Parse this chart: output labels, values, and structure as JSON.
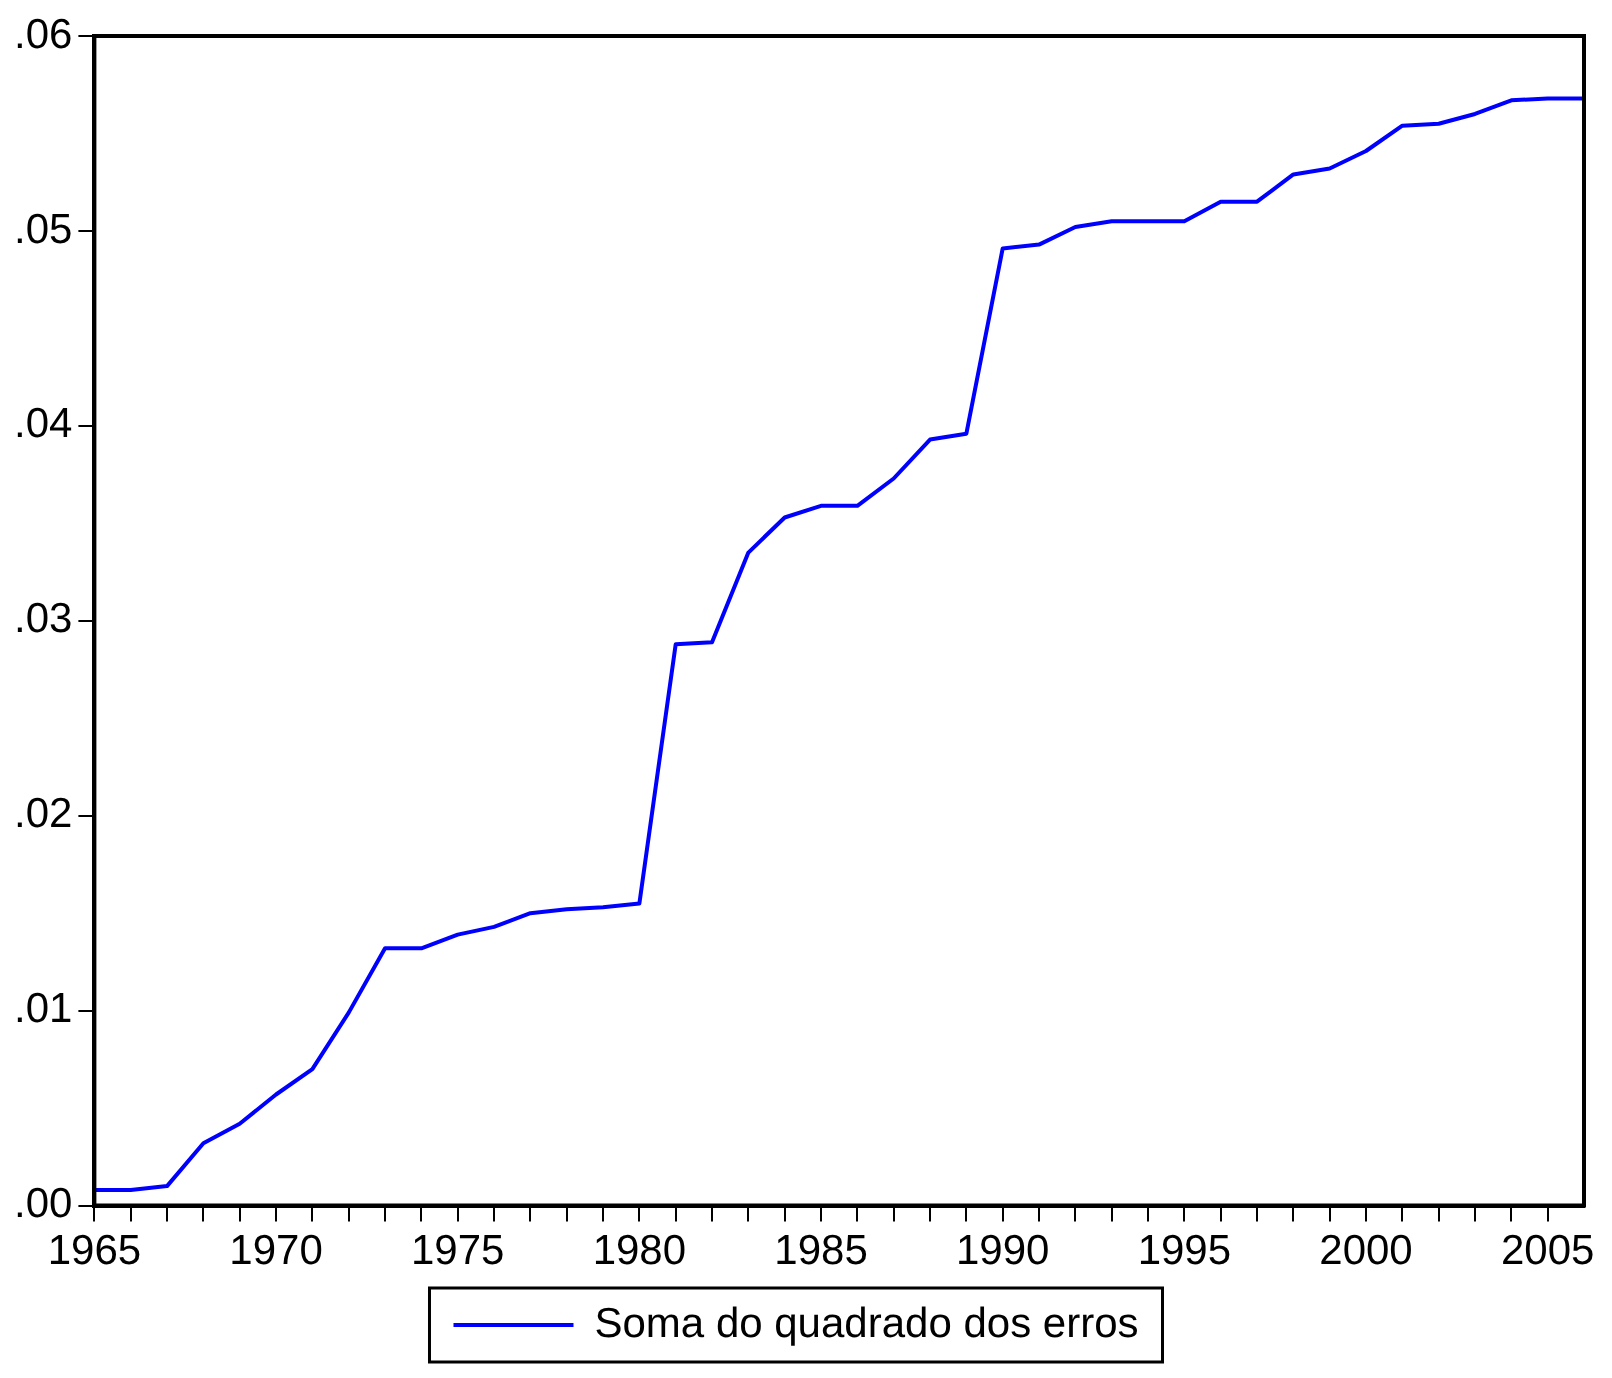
{
  "chart_data": {
    "type": "line",
    "x": [
      1965,
      1966,
      1967,
      1968,
      1969,
      1970,
      1971,
      1972,
      1973,
      1974,
      1975,
      1976,
      1977,
      1978,
      1979,
      1980,
      1981,
      1982,
      1983,
      1984,
      1985,
      1986,
      1987,
      1988,
      1989,
      1990,
      1991,
      1992,
      1993,
      1994,
      1995,
      1996,
      1997,
      1998,
      1999,
      2000,
      2001,
      2002,
      2003,
      2004,
      2005,
      2006
    ],
    "series": [
      {
        "name": "Soma do quadrado dos erros",
        "color": "#0000ff",
        "values": [
          0.0008,
          0.0008,
          0.001,
          0.0032,
          0.0042,
          0.0057,
          0.007,
          0.0099,
          0.0132,
          0.0132,
          0.0139,
          0.0143,
          0.015,
          0.0152,
          0.0153,
          0.0155,
          0.0288,
          0.0289,
          0.0335,
          0.0353,
          0.0359,
          0.0359,
          0.0373,
          0.0393,
          0.0396,
          0.0491,
          0.0493,
          0.0502,
          0.0505,
          0.0505,
          0.0505,
          0.0515,
          0.0515,
          0.0529,
          0.0532,
          0.0541,
          0.0554,
          0.0555,
          0.056,
          0.0567,
          0.0568,
          0.0568
        ]
      }
    ],
    "xlim": [
      1965,
      2006
    ],
    "xticks": [
      1965,
      {
        "value": 1966,
        "label": null
      },
      {
        "value": 1967,
        "label": null
      },
      {
        "value": 1968,
        "label": null
      },
      {
        "value": 1969,
        "label": null
      },
      1970,
      {
        "value": 1971,
        "label": null
      },
      {
        "value": 1972,
        "label": null
      },
      {
        "value": 1973,
        "label": null
      },
      {
        "value": 1974,
        "label": null
      },
      1975,
      {
        "value": 1976,
        "label": null
      },
      {
        "value": 1977,
        "label": null
      },
      {
        "value": 1978,
        "label": null
      },
      {
        "value": 1979,
        "label": null
      },
      1980,
      {
        "value": 1981,
        "label": null
      },
      {
        "value": 1982,
        "label": null
      },
      {
        "value": 1983,
        "label": null
      },
      {
        "value": 1984,
        "label": null
      },
      1985,
      {
        "value": 1986,
        "label": null
      },
      {
        "value": 1987,
        "label": null
      },
      {
        "value": 1988,
        "label": null
      },
      {
        "value": 1989,
        "label": null
      },
      1990,
      {
        "value": 1991,
        "label": null
      },
      {
        "value": 1992,
        "label": null
      },
      {
        "value": 1993,
        "label": null
      },
      {
        "value": 1994,
        "label": null
      },
      1995,
      {
        "value": 1996,
        "label": null
      },
      {
        "value": 1997,
        "label": null
      },
      {
        "value": 1998,
        "label": null
      },
      {
        "value": 1999,
        "label": null
      },
      2000,
      {
        "value": 2001,
        "label": null
      },
      {
        "value": 2002,
        "label": null
      },
      {
        "value": 2003,
        "label": null
      },
      {
        "value": 2004,
        "label": null
      },
      2005
    ],
    "ylim": [
      0,
      0.06
    ],
    "yticks": [
      {
        "value": 0,
        "label": ".00"
      },
      {
        "value": 0.01,
        "label": ".01"
      },
      {
        "value": 0.02,
        "label": ".02"
      },
      {
        "value": 0.03,
        "label": ".03"
      },
      {
        "value": 0.04,
        "label": ".04"
      },
      {
        "value": 0.05,
        "label": ".05"
      },
      {
        "value": 0.06,
        "label": ".06"
      }
    ],
    "legend": "bottom",
    "marker": "none",
    "line_style": "solid"
  }
}
